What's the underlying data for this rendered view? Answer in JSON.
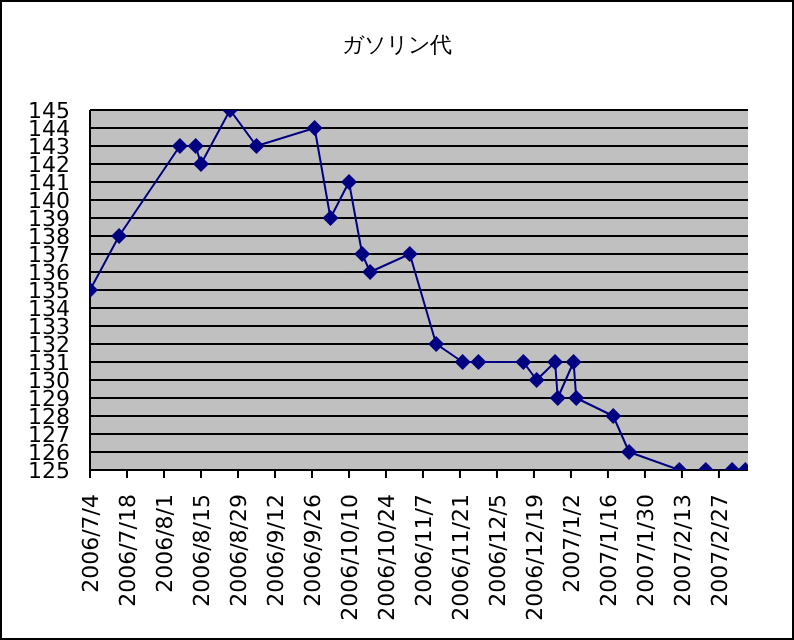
{
  "chart_data": {
    "type": "line",
    "title": "ガソリン代",
    "x": [
      "2006-07-04",
      "2006-07-15",
      "2006-08-07",
      "2006-08-13",
      "2006-08-15",
      "2006-08-26",
      "2006-09-05",
      "2006-09-27",
      "2006-10-03",
      "2006-10-10",
      "2006-10-15",
      "2006-10-18",
      "2006-11-02",
      "2006-11-12",
      "2006-11-22",
      "2006-11-28",
      "2006-12-15",
      "2006-12-20",
      "2006-12-27",
      "2006-12-28",
      "2007-01-03",
      "2007-01-04",
      "2007-01-18",
      "2007-01-24",
      "2007-02-12",
      "2007-02-22",
      "2007-03-04",
      "2007-03-09"
    ],
    "series": [
      {
        "color": "#000080",
        "values": [
          135,
          138,
          143,
          143,
          142,
          145,
          143,
          144,
          139,
          141,
          137,
          136,
          137,
          132,
          131,
          131,
          131,
          130,
          131,
          129,
          131,
          129,
          128,
          126,
          125,
          125,
          125,
          125
        ]
      }
    ],
    "ylim": [
      125,
      145
    ],
    "yticks": [
      125,
      126,
      127,
      128,
      129,
      130,
      131,
      132,
      133,
      134,
      135,
      136,
      137,
      138,
      139,
      140,
      141,
      142,
      143,
      144,
      145
    ],
    "xlim": [
      "2006-07-04",
      "2007-03-10"
    ],
    "xticks": [
      {
        "value": "2006-07-04",
        "label": "2006/7/4"
      },
      {
        "value": "2006-07-18",
        "label": "2006/7/18"
      },
      {
        "value": "2006-08-01",
        "label": "2006/8/1"
      },
      {
        "value": "2006-08-15",
        "label": "2006/8/15"
      },
      {
        "value": "2006-08-29",
        "label": "2006/8/29"
      },
      {
        "value": "2006-09-12",
        "label": "2006/9/12"
      },
      {
        "value": "2006-09-26",
        "label": "2006/9/26"
      },
      {
        "value": "2006-10-10",
        "label": "2006/10/10"
      },
      {
        "value": "2006-10-24",
        "label": "2006/10/24"
      },
      {
        "value": "2006-11-07",
        "label": "2006/11/7"
      },
      {
        "value": "2006-11-21",
        "label": "2006/11/21"
      },
      {
        "value": "2006-12-05",
        "label": "2006/12/5"
      },
      {
        "value": "2006-12-19",
        "label": "2006/12/19"
      },
      {
        "value": "2007-01-02",
        "label": "2007/1/2"
      },
      {
        "value": "2007-01-16",
        "label": "2007/1/16"
      },
      {
        "value": "2007-01-30",
        "label": "2007/1/30"
      },
      {
        "value": "2007-02-13",
        "label": "2007/2/13"
      },
      {
        "value": "2007-02-27",
        "label": "2007/2/27"
      }
    ],
    "grid": "y",
    "marker": "diamond",
    "line_style": "solid",
    "legend": false
  }
}
